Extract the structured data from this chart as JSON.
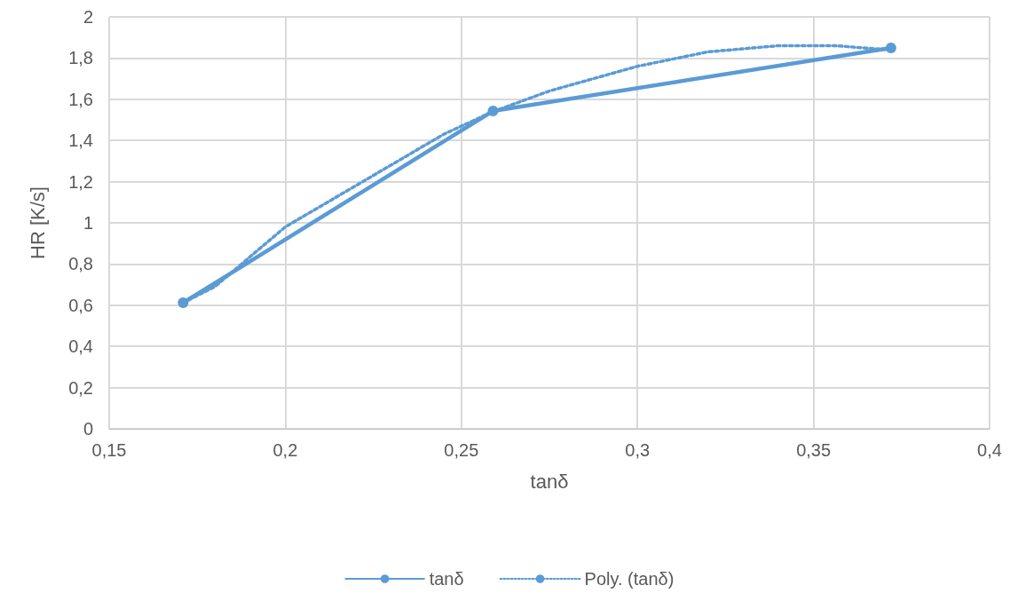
{
  "chart_data": {
    "type": "line",
    "xlabel": "tanδ",
    "ylabel": "HR [K/s]",
    "xlim": [
      0.15,
      0.4
    ],
    "xticks": [
      {
        "value": 0.15,
        "label": "0,15"
      },
      {
        "value": 0.2,
        "label": "0,2"
      },
      {
        "value": 0.25,
        "label": "0,25"
      },
      {
        "value": 0.3,
        "label": "0,3"
      },
      {
        "value": 0.35,
        "label": "0,35"
      },
      {
        "value": 0.4,
        "label": "0,4"
      }
    ],
    "ylim": [
      0,
      2
    ],
    "yticks": [
      0,
      {
        "value": 0.2,
        "label": "0,2"
      },
      {
        "value": 0.4,
        "label": "0,4"
      },
      {
        "value": 0.6,
        "label": "0,6"
      },
      {
        "value": 0.8,
        "label": "0,8"
      },
      1,
      {
        "value": 1.2,
        "label": "1,2"
      },
      {
        "value": 1.4,
        "label": "1,4"
      },
      {
        "value": 1.6,
        "label": "1,6"
      },
      {
        "value": 1.8,
        "label": "1,8"
      },
      2
    ],
    "grid": true,
    "legend": "bottom",
    "series": [
      {
        "name": "tanδ",
        "color": "#5b9bd5",
        "marker": "circle",
        "line_style": "solid",
        "x": [
          0.171,
          0.259,
          0.372
        ],
        "values": [
          0.612,
          1.543,
          1.849
        ]
      },
      {
        "name": "Poly. (tanδ)",
        "color": "#5b9bd5",
        "marker": "none",
        "line_style": "dotted",
        "x": [
          0.171,
          0.18,
          0.2,
          0.225,
          0.245,
          0.259,
          0.275,
          0.3,
          0.32,
          0.34,
          0.356,
          0.372
        ],
        "values": [
          0.612,
          0.69,
          0.98,
          1.23,
          1.43,
          1.54,
          1.64,
          1.76,
          1.83,
          1.86,
          1.86,
          1.84
        ]
      }
    ]
  }
}
